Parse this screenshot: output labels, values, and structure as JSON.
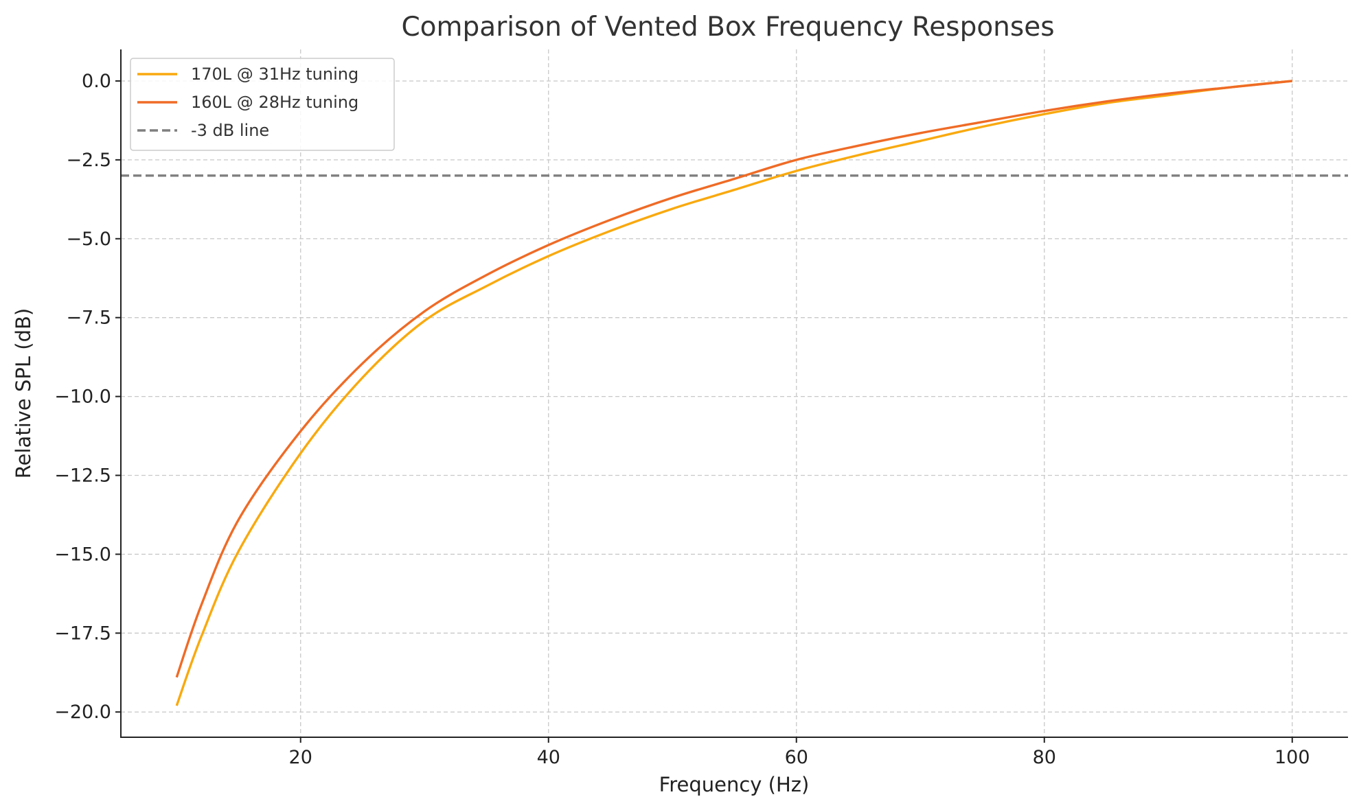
{
  "chart_data": {
    "type": "line",
    "title": "Comparison of Vented Box Frequency Responses",
    "xlabel": "Frequency (Hz)",
    "ylabel": "Relative SPL (dB)",
    "xlim": [
      5.5,
      104.5
    ],
    "ylim": [
      -20.8,
      1.0
    ],
    "xticks": [
      20,
      40,
      60,
      80,
      100
    ],
    "xtick_labels": [
      "20",
      "40",
      "60",
      "80",
      "100"
    ],
    "yticks": [
      0.0,
      -2.5,
      -5.0,
      -7.5,
      -10.0,
      -12.5,
      -15.0,
      -17.5,
      -20.0
    ],
    "ytick_labels": [
      "0.0",
      "−2.5",
      "−5.0",
      "−7.5",
      "−10.0",
      "−12.5",
      "−15.0",
      "−17.5",
      "−20.0"
    ],
    "grid": true,
    "legend_position": "top-left",
    "x": [
      10,
      12,
      15,
      20,
      25,
      30,
      35,
      40,
      45,
      50,
      55,
      60,
      65,
      70,
      75,
      80,
      85,
      90,
      95,
      100
    ],
    "series": [
      {
        "name": "170L @ 31Hz tuning",
        "color": "#f9a90e",
        "style": "solid",
        "values": [
          -19.8,
          -17.6,
          -14.9,
          -11.8,
          -9.4,
          -7.6,
          -6.5,
          -5.55,
          -4.75,
          -4.05,
          -3.45,
          -2.85,
          -2.35,
          -1.9,
          -1.45,
          -1.05,
          -0.7,
          -0.45,
          -0.2,
          0.0
        ]
      },
      {
        "name": "160L @ 28Hz tuning",
        "color": "#ef6b26",
        "style": "solid",
        "values": [
          -18.9,
          -16.6,
          -13.9,
          -11.1,
          -8.95,
          -7.3,
          -6.15,
          -5.2,
          -4.4,
          -3.7,
          -3.1,
          -2.5,
          -2.05,
          -1.65,
          -1.3,
          -0.95,
          -0.65,
          -0.4,
          -0.2,
          0.0
        ]
      },
      {
        "name": "-3 dB line",
        "color": "#7f7f7f",
        "style": "dashed",
        "type": "hline",
        "y": -3
      }
    ]
  }
}
